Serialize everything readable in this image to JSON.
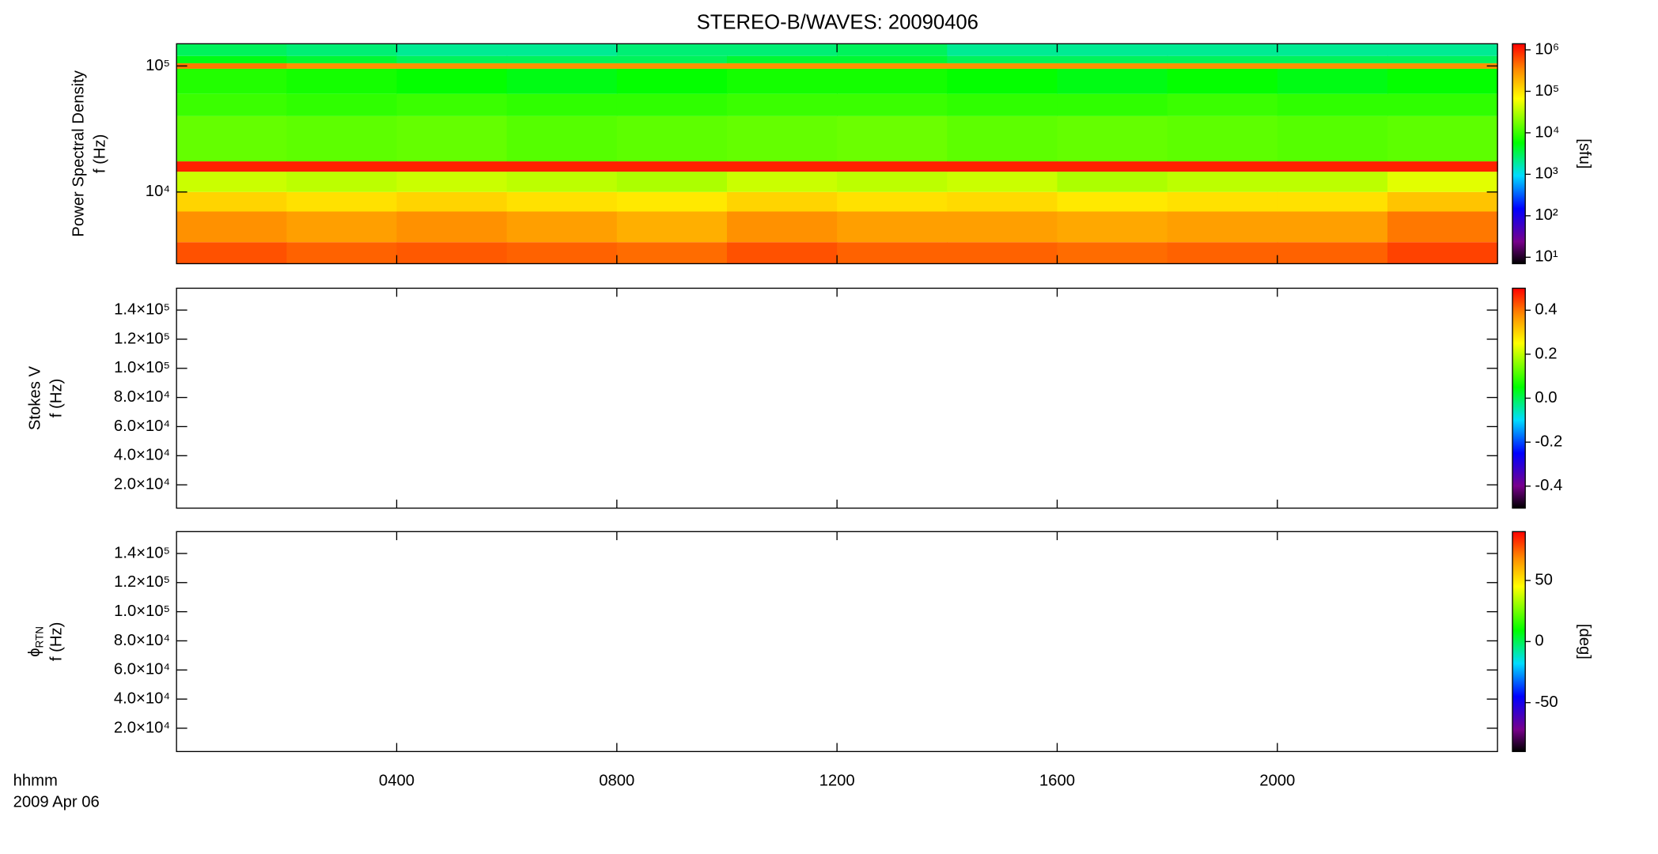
{
  "title": "STEREO-B/WAVES: 20090406",
  "xaxis": {
    "label": "hhmm",
    "sublabel": "2009 Apr 06",
    "xlim": [
      0,
      24
    ],
    "xticks": [
      {
        "value": 4,
        "label": "0400"
      },
      {
        "value": 8,
        "label": "0800"
      },
      {
        "value": 12,
        "label": "1200"
      },
      {
        "value": 16,
        "label": "1600"
      },
      {
        "value": 20,
        "label": "2000"
      }
    ]
  },
  "chart_data": [
    {
      "type": "heatmap",
      "ylabel": [
        "Power Spectral Density",
        "f (Hz)"
      ],
      "log_y": true,
      "ylim": [
        2700,
        150000
      ],
      "yticks": [
        {
          "value": 10000,
          "label": "10⁴"
        },
        {
          "value": 100000,
          "label": "10⁵"
        }
      ],
      "x_edges": [
        0,
        2,
        4,
        6,
        8,
        10,
        12,
        14,
        16,
        18,
        20,
        22,
        24
      ],
      "y_edges": [
        2700,
        4000,
        7000,
        10000,
        14500,
        17500,
        40000,
        60000,
        95000,
        105000,
        120000,
        150000
      ],
      "z": [
        [
          600000,
          500000,
          550000,
          500000,
          450000,
          600000,
          500000,
          500000,
          450000,
          500000,
          500000,
          700000
        ],
        [
          300000,
          250000,
          300000,
          250000,
          200000,
          300000,
          250000,
          250000,
          220000,
          250000,
          250000,
          400000
        ],
        [
          120000,
          100000,
          120000,
          100000,
          90000,
          120000,
          100000,
          110000,
          90000,
          100000,
          100000,
          150000
        ],
        [
          40000,
          35000,
          40000,
          35000,
          30000,
          40000,
          35000,
          40000,
          30000,
          35000,
          35000,
          50000
        ],
        [
          1000000,
          1000000,
          1000000,
          1000000,
          1000000,
          1000000,
          1000000,
          1000000,
          1000000,
          1000000,
          1000000,
          1000000
        ],
        [
          15000,
          14000,
          15000,
          13000,
          14000,
          15000,
          16000,
          14000,
          15000,
          14000,
          13000,
          14000
        ],
        [
          10000,
          9000,
          10000,
          9000,
          9000,
          10000,
          10000,
          9000,
          9000,
          10000,
          9000,
          9000
        ],
        [
          8000,
          7000,
          6000,
          5000,
          6000,
          7000,
          7000,
          6000,
          5000,
          6000,
          5000,
          6000
        ],
        [
          400000,
          300000,
          300000,
          300000,
          300000,
          300000,
          300000,
          300000,
          300000,
          300000,
          300000,
          300000
        ],
        [
          5000,
          4000,
          3000,
          3000,
          3000,
          4000,
          4000,
          3000,
          3000,
          3000,
          3000,
          3000
        ],
        [
          3000,
          2500,
          2000,
          2000,
          2500,
          2500,
          3000,
          2000,
          2000,
          2000,
          2000,
          2000
        ]
      ],
      "colorbar": {
        "log": true,
        "lim": [
          7,
          1400000
        ],
        "label": "[sfu]",
        "ticks": [
          {
            "value": 10,
            "label": "10¹"
          },
          {
            "value": 100,
            "label": "10²"
          },
          {
            "value": 1000,
            "label": "10³"
          },
          {
            "value": 10000,
            "label": "10⁴"
          },
          {
            "value": 100000,
            "label": "10⁵"
          },
          {
            "value": 1000000,
            "label": "10⁶"
          }
        ]
      }
    },
    {
      "type": "heatmap",
      "ylabel": [
        "Stokes V",
        "f (Hz)"
      ],
      "log_y": false,
      "ylim": [
        4000,
        155000
      ],
      "yticks": [
        {
          "value": 20000,
          "label": "2.0×10⁴"
        },
        {
          "value": 40000,
          "label": "4.0×10⁴"
        },
        {
          "value": 60000,
          "label": "6.0×10⁴"
        },
        {
          "value": 80000,
          "label": "8.0×10⁴"
        },
        {
          "value": 100000,
          "label": "1.0×10⁵"
        },
        {
          "value": 120000,
          "label": "1.2×10⁵"
        },
        {
          "value": 140000,
          "label": "1.4×10⁵"
        }
      ],
      "colorbar": {
        "log": false,
        "lim": [
          -0.5,
          0.5
        ],
        "ticks": [
          -0.4,
          -0.2,
          {
            "value": 0,
            "label": "0.0"
          },
          0.2,
          0.4
        ]
      }
    },
    {
      "type": "heatmap",
      "ylabel": [
        {
          "symbol": "ϕ",
          "subscript": "RTN"
        },
        "f (Hz)"
      ],
      "log_y": false,
      "ylim": [
        4000,
        155000
      ],
      "yticks": [
        {
          "value": 20000,
          "label": "2.0×10⁴"
        },
        {
          "value": 40000,
          "label": "4.0×10⁴"
        },
        {
          "value": 60000,
          "label": "6.0×10⁴"
        },
        {
          "value": 80000,
          "label": "8.0×10⁴"
        },
        {
          "value": 100000,
          "label": "1.0×10⁵"
        },
        {
          "value": 120000,
          "label": "1.2×10⁵"
        },
        {
          "value": 140000,
          "label": "1.4×10⁵"
        }
      ],
      "colorbar": {
        "log": false,
        "lim": [
          -90,
          90
        ],
        "label": "[deg]",
        "ticks": [
          -50,
          0,
          50
        ]
      }
    }
  ]
}
